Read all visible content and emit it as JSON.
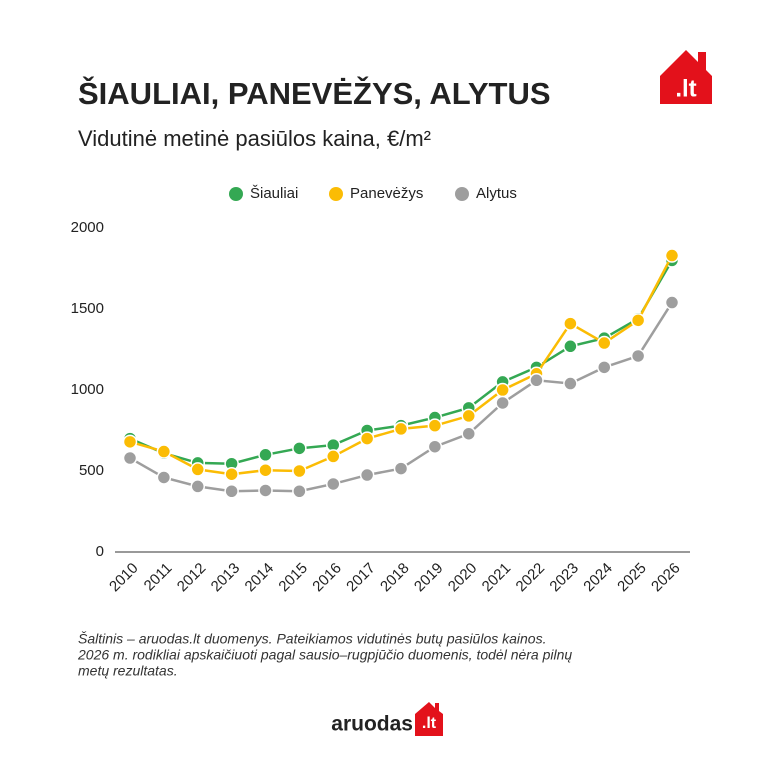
{
  "logo": ".lt",
  "chart_data": {
    "type": "line",
    "title": "ŠIAULIAI, PANEVĖŽYS, ALYTUS",
    "subtitle": "Vidutinė metinė pasiūlos kaina, €/m²",
    "categories": [
      "2010",
      "2011",
      "2012",
      "2013",
      "2014",
      "2015",
      "2016",
      "2017",
      "2018",
      "2019",
      "2020",
      "2021",
      "2022",
      "2023",
      "2024",
      "2025",
      "2026"
    ],
    "series": [
      {
        "name": "Šiauliai",
        "color": "#34a853",
        "values": [
          700,
          610,
          550,
          545,
          600,
          640,
          660,
          750,
          780,
          830,
          890,
          1050,
          1140,
          1270,
          1320,
          1440,
          1800
        ]
      },
      {
        "name": "Panevėžys",
        "color": "#fbbc04",
        "values": [
          680,
          620,
          510,
          480,
          505,
          500,
          590,
          700,
          760,
          780,
          840,
          1000,
          1100,
          1410,
          1290,
          1430,
          1830
        ]
      },
      {
        "name": "Alytus",
        "color": "#9e9e9e",
        "values": [
          580,
          460,
          405,
          375,
          380,
          375,
          420,
          475,
          515,
          650,
          730,
          920,
          1060,
          1040,
          1140,
          1210,
          1540
        ]
      }
    ],
    "ylim": [
      0,
      2000
    ],
    "yticks": [
      0,
      500,
      1000,
      1500,
      2000
    ],
    "grid": false,
    "legend": "top"
  },
  "notes": [
    "Šaltinis – aruodas.lt duomenys. Pateikiamos vidutinės butų pasiūlos kainos.",
    "2026 m. rodikliai apskaičiuoti pagal sausio–rugpjūčio duomenis, todėl nėra pilnų",
    "metų rezultatas."
  ],
  "brand": {
    "name": "aruodas",
    "suffix": ".lt"
  }
}
